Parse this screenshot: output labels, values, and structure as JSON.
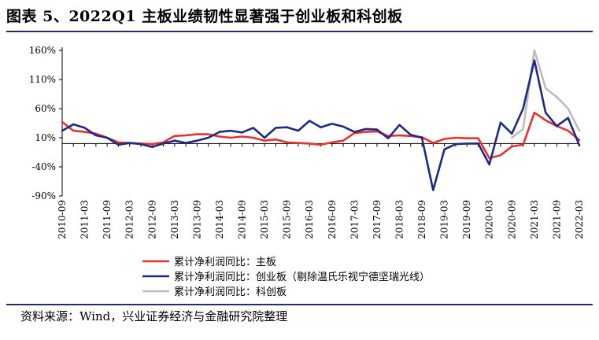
{
  "figure": {
    "title": "图表 5、2022Q1 主板业绩韧性显著强于创业板和科创板",
    "source": "资料来源：Wind，兴业证券经济与金融研究院整理"
  },
  "chart_data": {
    "type": "line",
    "ylim": [
      -90,
      160
    ],
    "yticks": [
      -90,
      -40,
      10,
      60,
      110,
      160
    ],
    "ytick_labels": [
      "-90%",
      "-40%",
      "10%",
      "60%",
      "110%",
      "160%"
    ],
    "baseline": 0,
    "x": [
      "2010-09",
      "2010-12",
      "2011-03",
      "2011-06",
      "2011-09",
      "2011-12",
      "2012-03",
      "2012-06",
      "2012-09",
      "2012-12",
      "2013-03",
      "2013-06",
      "2013-09",
      "2013-12",
      "2014-03",
      "2014-06",
      "2014-09",
      "2014-12",
      "2015-03",
      "2015-06",
      "2015-09",
      "2015-12",
      "2016-03",
      "2016-06",
      "2016-09",
      "2016-12",
      "2017-03",
      "2017-06",
      "2017-09",
      "2017-12",
      "2018-03",
      "2018-06",
      "2018-09",
      "2018-12",
      "2019-03",
      "2019-06",
      "2019-09",
      "2019-12",
      "2020-03",
      "2020-06",
      "2020-09",
      "2020-12",
      "2021-03",
      "2021-06",
      "2021-09",
      "2021-12",
      "2022-03"
    ],
    "xtick_labels": [
      "2010-09",
      "2011-03",
      "2011-09",
      "2012-03",
      "2012-09",
      "2013-03",
      "2013-09",
      "2014-03",
      "2014-09",
      "2015-03",
      "2015-09",
      "2016-03",
      "2016-09",
      "2017-03",
      "2017-09",
      "2018-03",
      "2018-09",
      "2019-03",
      "2019-09",
      "2020-03",
      "2020-09",
      "2021-03",
      "2021-09",
      "2022-03"
    ],
    "series": [
      {
        "name": "累计净利润同比：主板",
        "color": "#e8312c",
        "values": [
          37,
          22,
          20,
          17,
          10,
          2,
          1,
          0,
          -1,
          2,
          13,
          14,
          16,
          16,
          12,
          10,
          12,
          10,
          5,
          7,
          2,
          1,
          0,
          -2,
          2,
          5,
          18,
          20,
          21,
          13,
          14,
          13,
          11,
          1,
          8,
          10,
          9,
          9,
          -25,
          -20,
          -5,
          -2,
          53,
          40,
          30,
          22,
          6
        ]
      },
      {
        "name": "累计净利润同比：创业板（剔除温氏乐视宁德坚瑞光线）",
        "color": "#1c2a86",
        "values": [
          22,
          33,
          27,
          14,
          10,
          -2,
          1,
          -1,
          -6,
          0,
          5,
          1,
          5,
          10,
          20,
          22,
          19,
          27,
          10,
          27,
          28,
          22,
          39,
          28,
          34,
          29,
          20,
          25,
          24,
          9,
          32,
          15,
          10,
          -80,
          -10,
          -1,
          0,
          0,
          -36,
          36,
          17,
          60,
          143,
          53,
          30,
          44,
          -3
        ]
      },
      {
        "name": "累计净利润同比：科创板",
        "color": "#bdbdbd",
        "start_index": 40,
        "values": [
          null,
          null,
          null,
          null,
          null,
          null,
          null,
          null,
          null,
          null,
          null,
          null,
          null,
          null,
          null,
          null,
          null,
          null,
          null,
          null,
          null,
          null,
          null,
          null,
          null,
          null,
          null,
          null,
          null,
          null,
          null,
          null,
          null,
          null,
          null,
          null,
          null,
          null,
          null,
          null,
          10,
          25,
          160,
          95,
          80,
          60,
          22
        ]
      }
    ]
  }
}
